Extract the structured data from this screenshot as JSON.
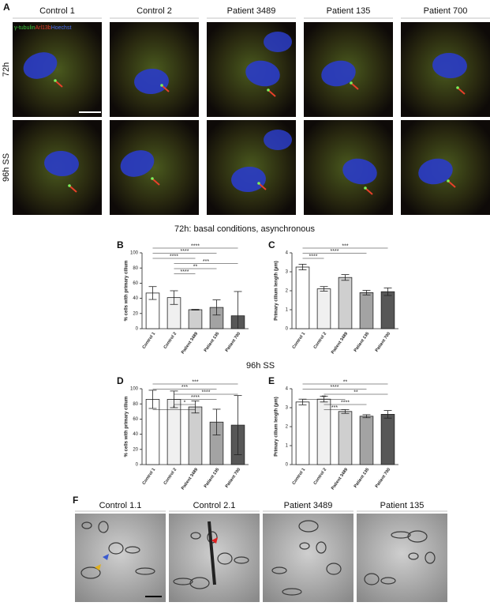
{
  "panel_letters": [
    "A",
    "B",
    "C",
    "D",
    "E",
    "F"
  ],
  "panel_a": {
    "columns": [
      "Control 1",
      "Control 2",
      "Patient 3489",
      "Patient 135",
      "Patient 700"
    ],
    "rows": [
      "72h",
      "96h SS"
    ],
    "stain_label": [
      "γ-tubulin",
      "Arl13b",
      "Hoechst"
    ]
  },
  "section_titles": [
    "72h: basal conditions, asynchronous",
    "96h SS"
  ],
  "chart_data": [
    {
      "type": "bar",
      "ylabel": "% cells with primary cilium",
      "categories": [
        "Control 1",
        "Control 2",
        "Patient 3489",
        "Patient 135",
        "Patient 700"
      ],
      "values": [
        47,
        41,
        25,
        28,
        17
      ],
      "errors": [
        8.5,
        9,
        0.5,
        10,
        32
      ],
      "colors": [
        "#ffffff",
        "#f0f0f0",
        "#cfcfcf",
        "#a3a3a3",
        "#575757"
      ],
      "ylim": [
        0,
        100
      ],
      "yticks": [
        0,
        20,
        40,
        60,
        80,
        100
      ],
      "significance": [
        {
          "from": "Control 1",
          "to": "Patient 700",
          "label": "****"
        },
        {
          "from": "Control 1",
          "to": "Patient 135",
          "label": "****"
        },
        {
          "from": "Control 1",
          "to": "Patient 3489",
          "label": "****"
        },
        {
          "from": "Control 2",
          "to": "Patient 700",
          "label": "***"
        },
        {
          "from": "Control 2",
          "to": "Patient 135",
          "label": "**"
        },
        {
          "from": "Control 2",
          "to": "Patient 3489",
          "label": "****"
        }
      ]
    },
    {
      "type": "bar",
      "ylabel": "Primary cilium length (µm)",
      "categories": [
        "Control 1",
        "Control 2",
        "Patient 3489",
        "Patient 135",
        "Patient 700"
      ],
      "values": [
        3.25,
        2.1,
        2.7,
        1.9,
        1.95
      ],
      "errors": [
        0.15,
        0.12,
        0.15,
        0.12,
        0.2
      ],
      "colors": [
        "#ffffff",
        "#f0f0f0",
        "#cfcfcf",
        "#a3a3a3",
        "#575757"
      ],
      "ylim": [
        0,
        4
      ],
      "yticks": [
        0,
        1,
        2,
        3,
        4
      ],
      "significance": [
        {
          "from": "Control 1",
          "to": "Patient 700",
          "label": "***"
        },
        {
          "from": "Control 1",
          "to": "Patient 135",
          "label": "****"
        },
        {
          "from": "Control 1",
          "to": "Control 2",
          "label": "****"
        }
      ]
    },
    {
      "type": "bar",
      "ylabel": "% cells with primary cilium",
      "categories": [
        "Control 1",
        "Control 2",
        "Patient 3489",
        "Patient 135",
        "Patient 700"
      ],
      "values": [
        86,
        86,
        76,
        56,
        52
      ],
      "errors": [
        12,
        11,
        8,
        17,
        39
      ],
      "colors": [
        "#ffffff",
        "#f0f0f0",
        "#cfcfcf",
        "#a3a3a3",
        "#575757"
      ],
      "ylim": [
        0,
        100
      ],
      "yticks": [
        0,
        20,
        40,
        60,
        80,
        100
      ],
      "significance": [
        {
          "from": "Control 1",
          "to": "Patient 700",
          "label": "***"
        },
        {
          "from": "Control 1",
          "to": "Patient 135",
          "label": "***"
        },
        {
          "from": "Control 2",
          "to": "Patient 700",
          "label": "****"
        },
        {
          "from": "Control 2",
          "to": "Patient 135",
          "label": "****"
        },
        {
          "from": "Control 2",
          "to": "Patient 3489",
          "label": "*"
        },
        {
          "from": "Control 1",
          "to": "Patient 3489",
          "label": "*"
        }
      ]
    },
    {
      "type": "bar",
      "ylabel": "Primary cilium length (µm)",
      "categories": [
        "Control 1",
        "Control 2",
        "Patient 3489",
        "Patient 135",
        "Patient 700"
      ],
      "values": [
        3.3,
        3.45,
        2.8,
        2.55,
        2.65
      ],
      "errors": [
        0.15,
        0.15,
        0.1,
        0.08,
        0.2
      ],
      "colors": [
        "#ffffff",
        "#f0f0f0",
        "#cfcfcf",
        "#a3a3a3",
        "#575757"
      ],
      "ylim": [
        0,
        4
      ],
      "yticks": [
        0,
        1,
        2,
        3,
        4
      ],
      "significance": [
        {
          "from": "Control 1",
          "to": "Patient 700",
          "label": "**"
        },
        {
          "from": "Control 1",
          "to": "Patient 135",
          "label": "****"
        },
        {
          "from": "Control 2",
          "to": "Patient 700",
          "label": "**"
        },
        {
          "from": "Control 1",
          "to": "Patient 3489",
          "label": "**"
        },
        {
          "from": "Control 2",
          "to": "Patient 135",
          "label": "****"
        },
        {
          "from": "Control 2",
          "to": "Patient 3489",
          "label": "***"
        }
      ]
    }
  ],
  "panel_f": {
    "labels": [
      "Control 1.1",
      "Control 2.1",
      "Patient 3489",
      "Patient 135"
    ]
  }
}
